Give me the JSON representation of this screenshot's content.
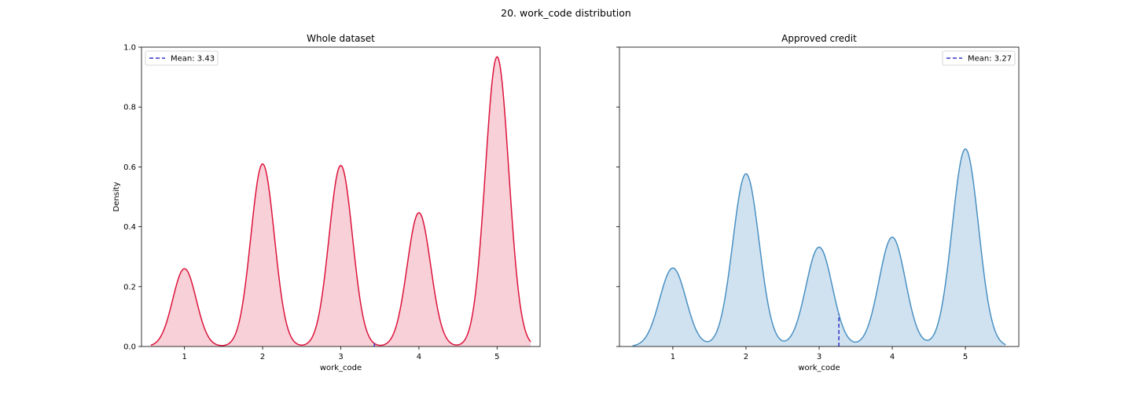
{
  "figure": {
    "suptitle": "20. work_code distribution"
  },
  "chart_data": [
    {
      "type": "area",
      "title": "Whole dataset",
      "xlabel": "work_code",
      "ylabel": "Density",
      "xlim": [
        0.45,
        5.55
      ],
      "ylim": [
        0,
        1.0
      ],
      "xticks": [
        "1",
        "2",
        "3",
        "4",
        "5"
      ],
      "xtick_values": [
        1,
        2,
        3,
        4,
        5
      ],
      "yticks": [
        "0.0",
        "0.2",
        "0.4",
        "0.6",
        "0.8",
        "1.0"
      ],
      "ytick_values": [
        0.0,
        0.2,
        0.4,
        0.6,
        0.8,
        1.0
      ],
      "show_yticklabels": true,
      "x_range": [
        0.57,
        5.43
      ],
      "peaks": [
        {
          "x": 1,
          "density": 0.26
        },
        {
          "x": 2,
          "density": 0.61
        },
        {
          "x": 3,
          "density": 0.605
        },
        {
          "x": 4,
          "density": 0.447
        },
        {
          "x": 5,
          "density": 0.968
        }
      ],
      "peak_sigma": 0.15,
      "mean": 3.43,
      "legend": {
        "label": "Mean: 3.43",
        "loc": "upper left"
      },
      "colors": {
        "line": "#dc143c",
        "fill": "#f8d0d8",
        "mean_line": "#3333cc"
      }
    },
    {
      "type": "area",
      "title": "Approved credit",
      "xlabel": "work_code",
      "ylabel": "",
      "xlim": [
        0.27,
        5.73
      ],
      "ylim": [
        0,
        1.0
      ],
      "xticks": [
        "1",
        "2",
        "3",
        "4",
        "5"
      ],
      "xtick_values": [
        1,
        2,
        3,
        4,
        5
      ],
      "yticks": [],
      "ytick_values": [
        0.0,
        0.2,
        0.4,
        0.6,
        0.8,
        1.0
      ],
      "show_yticklabels": false,
      "x_range": [
        0.45,
        5.55
      ],
      "peaks": [
        {
          "x": 1,
          "density": 0.262
        },
        {
          "x": 2,
          "density": 0.577
        },
        {
          "x": 3,
          "density": 0.332
        },
        {
          "x": 4,
          "density": 0.365
        },
        {
          "x": 5,
          "density": 0.66
        }
      ],
      "peak_sigma": 0.18,
      "mean": 3.27,
      "legend": {
        "label": "Mean: 3.27",
        "loc": "upper right"
      },
      "colors": {
        "line": "#4a90c2",
        "fill": "#d0e2f0",
        "mean_line": "#3333cc"
      }
    }
  ]
}
